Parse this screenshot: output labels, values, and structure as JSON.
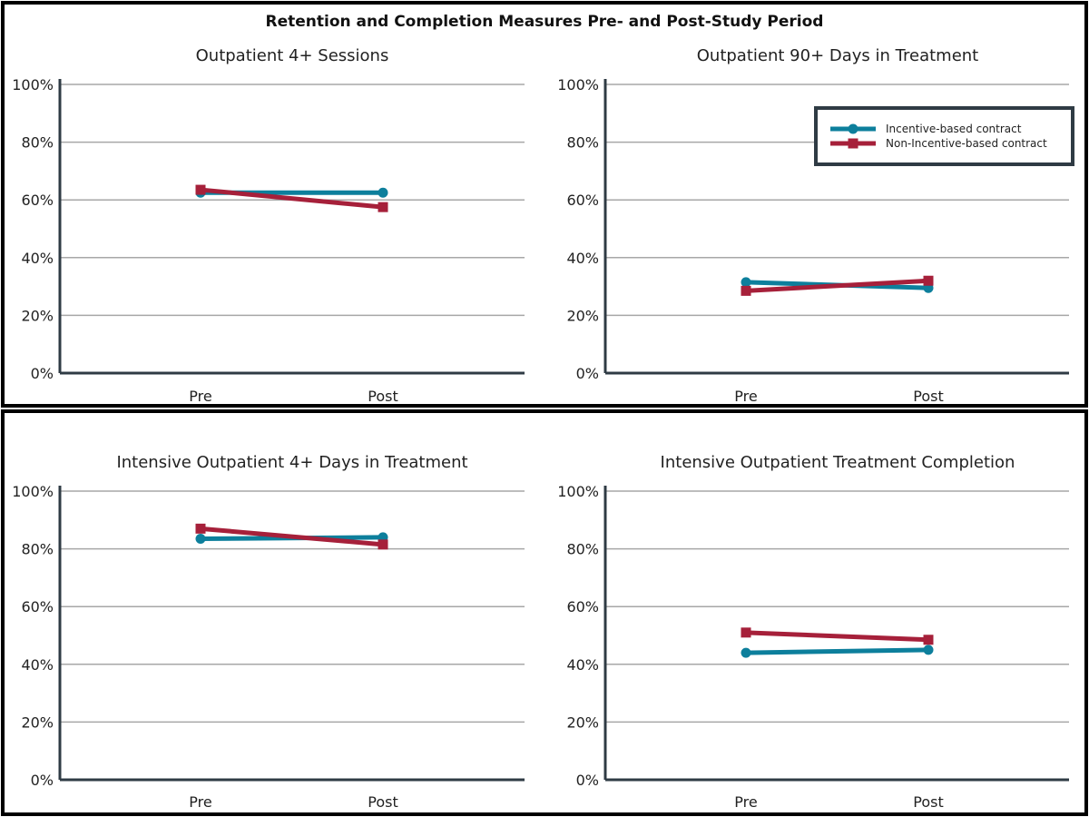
{
  "figure": {
    "title": "Retention and Completion Measures Pre- and Post-Study Period"
  },
  "colors": {
    "incentive": "#0d7f9c",
    "non_incentive": "#a6203a"
  },
  "legend": {
    "items": [
      {
        "name": "Incentive-based contract",
        "color": "#0d7f9c",
        "marker": "circle"
      },
      {
        "name": "Non-Incentive-based contract",
        "color": "#a6203a",
        "marker": "square"
      }
    ],
    "placement": "top-right of upper-right chart"
  },
  "chart_data": [
    {
      "type": "line",
      "title": "Outpatient 4+ Sessions",
      "categories": [
        "Pre",
        "Post"
      ],
      "ylim": [
        0,
        100
      ],
      "yticks": [
        "0%",
        "20%",
        "40%",
        "60%",
        "80%",
        "100%"
      ],
      "grid": true,
      "series": [
        {
          "name": "Incentive-based contract",
          "values": [
            62.5,
            62.5
          ]
        },
        {
          "name": "Non-Incentive-based contract",
          "values": [
            63.5,
            57.5
          ]
        }
      ]
    },
    {
      "type": "line",
      "title": "Outpatient 90+ Days in Treatment",
      "categories": [
        "Pre",
        "Post"
      ],
      "ylim": [
        0,
        100
      ],
      "yticks": [
        "0%",
        "20%",
        "40%",
        "60%",
        "80%",
        "100%"
      ],
      "grid": true,
      "series": [
        {
          "name": "Incentive-based contract",
          "values": [
            31.5,
            29.5
          ]
        },
        {
          "name": "Non-Incentive-based contract",
          "values": [
            28.5,
            32.0
          ]
        }
      ]
    },
    {
      "type": "line",
      "title": "Intensive Outpatient 4+ Days in Treatment",
      "categories": [
        "Pre",
        "Post"
      ],
      "ylim": [
        0,
        100
      ],
      "yticks": [
        "0%",
        "20%",
        "40%",
        "60%",
        "80%",
        "100%"
      ],
      "grid": true,
      "series": [
        {
          "name": "Incentive-based contract",
          "values": [
            83.5,
            84.0
          ]
        },
        {
          "name": "Non-Incentive-based contract",
          "values": [
            87.0,
            81.5
          ]
        }
      ]
    },
    {
      "type": "line",
      "title": "Intensive Outpatient Treatment Completion",
      "categories": [
        "Pre",
        "Post"
      ],
      "ylim": [
        0,
        100
      ],
      "yticks": [
        "0%",
        "20%",
        "40%",
        "60%",
        "80%",
        "100%"
      ],
      "grid": true,
      "series": [
        {
          "name": "Incentive-based contract",
          "values": [
            44.0,
            45.0
          ]
        },
        {
          "name": "Non-Incentive-based contract",
          "values": [
            51.0,
            48.5
          ]
        }
      ]
    }
  ]
}
